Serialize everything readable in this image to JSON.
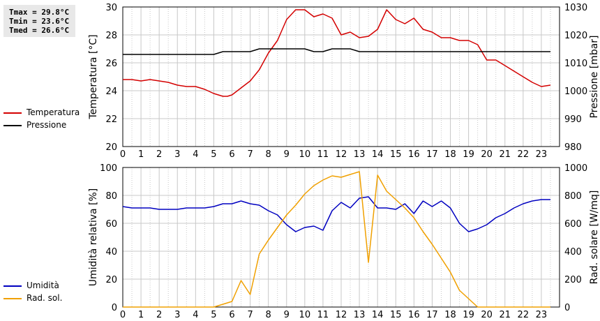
{
  "stats": {
    "tmax": "Tmax = 29.8°C",
    "tmin": "Tmin = 23.6°C",
    "tmed": "Tmed = 26.6°C"
  },
  "legend_top": [
    {
      "label": "Temperatura",
      "color": "#d40000"
    },
    {
      "label": "Pressione",
      "color": "#000000"
    }
  ],
  "legend_bottom": [
    {
      "label": "Umidità",
      "color": "#0000c0"
    },
    {
      "label": "Rad. sol.",
      "color": "#f0a000"
    }
  ],
  "chart_data": [
    {
      "type": "line",
      "ylabel": "Temperatura [°C]",
      "y2label": "Pressione [mbar]",
      "xlim": [
        0,
        24
      ],
      "ylim": [
        20,
        30
      ],
      "y2lim": [
        980,
        1030
      ],
      "xticks": [
        "0",
        "1",
        "2",
        "3",
        "4",
        "5",
        "6",
        "7",
        "8",
        "9",
        "10",
        "11",
        "12",
        "13",
        "14",
        "15",
        "16",
        "17",
        "18",
        "19",
        "20",
        "21",
        "22",
        "23"
      ],
      "yticks": [
        "20",
        "22",
        "24",
        "26",
        "28",
        "30"
      ],
      "y2ticks": [
        "980",
        "990",
        "1000",
        "1010",
        "1020",
        "1030"
      ],
      "grid": true,
      "series": [
        {
          "name": "Temperatura",
          "axis": "left",
          "color": "#d40000",
          "x": [
            0,
            0.5,
            1,
            1.5,
            2,
            2.5,
            3,
            3.5,
            4,
            4.5,
            5,
            5.5,
            5.75,
            6,
            6.5,
            7,
            7.5,
            8,
            8.5,
            9,
            9.5,
            10,
            10.5,
            11,
            11.5,
            12,
            12.5,
            13,
            13.5,
            14,
            14.5,
            15,
            15.5,
            16,
            16.5,
            17,
            17.5,
            18,
            18.5,
            19,
            19.5,
            20,
            20.5,
            21,
            21.5,
            22,
            22.5,
            23,
            23.5
          ],
          "values": [
            24.8,
            24.8,
            24.7,
            24.8,
            24.7,
            24.6,
            24.4,
            24.3,
            24.3,
            24.1,
            23.8,
            23.6,
            23.6,
            23.7,
            24.2,
            24.7,
            25.5,
            26.7,
            27.6,
            29.1,
            29.8,
            29.8,
            29.3,
            29.5,
            29.2,
            28.0,
            28.2,
            27.8,
            27.9,
            28.4,
            29.8,
            29.1,
            28.8,
            29.2,
            28.4,
            28.2,
            27.8,
            27.8,
            27.6,
            27.6,
            27.3,
            26.2,
            26.2,
            25.8,
            25.4,
            25.0,
            24.6,
            24.3,
            24.4
          ]
        },
        {
          "name": "Pressione",
          "axis": "right",
          "color": "#000000",
          "x": [
            0,
            5,
            5.5,
            6,
            6.5,
            7,
            7.5,
            8,
            8.5,
            9,
            9.5,
            10,
            10.5,
            11,
            11.5,
            12,
            12.5,
            13,
            13.5,
            14,
            23.5
          ],
          "values": [
            1013,
            1013,
            1014,
            1014,
            1014,
            1014,
            1015,
            1015,
            1015,
            1015,
            1015,
            1015,
            1014,
            1014,
            1015,
            1015,
            1015,
            1014,
            1014,
            1014,
            1014
          ]
        }
      ]
    },
    {
      "type": "line",
      "ylabel": "Umidità relativa [%]",
      "y2label": "Rad. solare [W/mq]",
      "xlim": [
        0,
        24
      ],
      "ylim": [
        0,
        100
      ],
      "y2lim": [
        0,
        1000
      ],
      "xticks": [
        "0",
        "1",
        "2",
        "3",
        "4",
        "5",
        "6",
        "7",
        "8",
        "9",
        "10",
        "11",
        "12",
        "13",
        "14",
        "15",
        "16",
        "17",
        "18",
        "19",
        "20",
        "21",
        "22",
        "23"
      ],
      "yticks": [
        "0",
        "20",
        "40",
        "60",
        "80",
        "100"
      ],
      "y2ticks": [
        "0",
        "200",
        "400",
        "600",
        "800",
        "1000"
      ],
      "grid": true,
      "series": [
        {
          "name": "Umidità",
          "axis": "left",
          "color": "#0000c0",
          "x": [
            0,
            0.5,
            1,
            1.5,
            2,
            2.5,
            3,
            3.5,
            4,
            4.5,
            5,
            5.5,
            6,
            6.5,
            7,
            7.5,
            8,
            8.5,
            9,
            9.5,
            10,
            10.5,
            11,
            11.5,
            12,
            12.5,
            13,
            13.5,
            14,
            14.5,
            15,
            15.5,
            16,
            16.5,
            17,
            17.5,
            18,
            18.5,
            19,
            19.5,
            20,
            20.5,
            21,
            21.5,
            22,
            22.5,
            23,
            23.5
          ],
          "values": [
            72,
            71,
            71,
            71,
            70,
            70,
            70,
            71,
            71,
            71,
            72,
            74,
            74,
            76,
            74,
            73,
            69,
            66,
            59,
            54,
            57,
            58,
            55,
            69,
            75,
            71,
            78,
            79,
            71,
            71,
            70,
            74,
            67,
            76,
            72,
            76,
            71,
            60,
            54,
            56,
            59,
            64,
            67,
            71,
            74,
            76,
            77,
            77
          ]
        },
        {
          "name": "Rad. sol.",
          "axis": "right",
          "color": "#f0a000",
          "x": [
            0,
            5,
            5.5,
            6,
            6.5,
            7,
            7.5,
            8,
            8.5,
            9,
            9.5,
            10,
            10.5,
            11,
            11.5,
            12,
            12.5,
            13,
            13.5,
            14,
            14.5,
            15,
            15.5,
            16,
            16.5,
            17,
            17.5,
            18,
            18.5,
            19,
            19.5,
            20,
            23.5
          ],
          "values": [
            0,
            0,
            20,
            40,
            190,
            90,
            380,
            480,
            570,
            660,
            730,
            810,
            870,
            910,
            940,
            930,
            950,
            970,
            320,
            945,
            830,
            770,
            710,
            640,
            540,
            450,
            350,
            250,
            120,
            60,
            0,
            0,
            0
          ]
        }
      ]
    }
  ]
}
